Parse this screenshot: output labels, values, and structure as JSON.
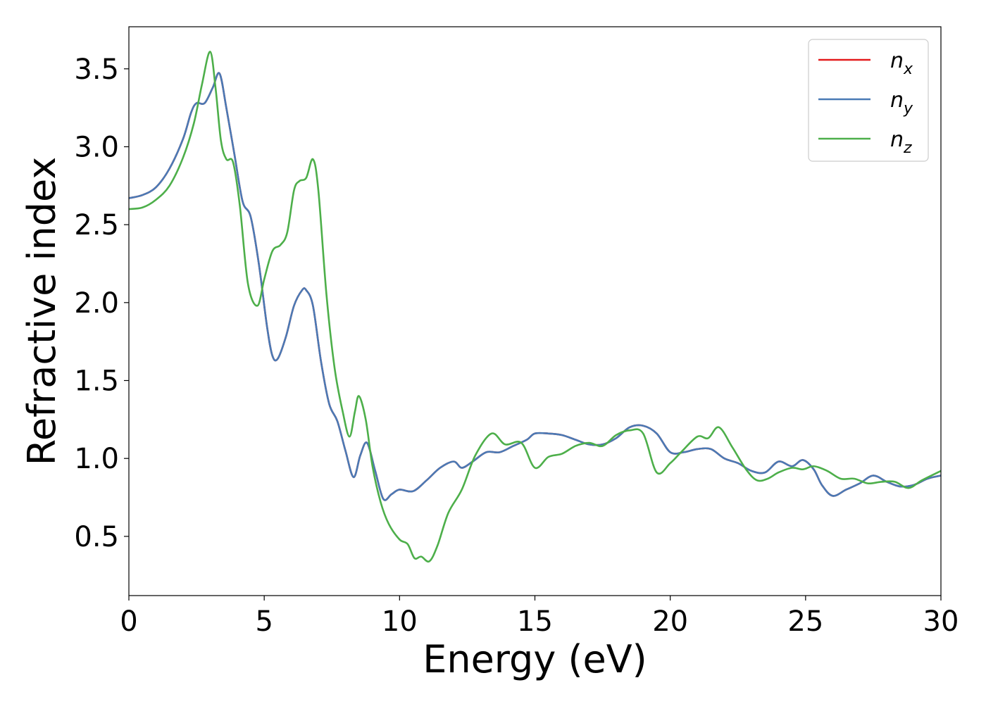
{
  "chart_data": {
    "type": "line",
    "xlabel": "Energy (eV)",
    "ylabel": "Refractive index",
    "xlim": [
      0,
      30
    ],
    "ylim": [
      0.12,
      3.77
    ],
    "xticks": [
      0,
      5,
      10,
      15,
      20,
      25,
      30
    ],
    "xtick_labels": [
      "0",
      "5",
      "10",
      "15",
      "20",
      "25",
      "30"
    ],
    "yticks": [
      0.5,
      1.0,
      1.5,
      2.0,
      2.5,
      3.0,
      3.5
    ],
    "ytick_labels": [
      "0.5",
      "1.0",
      "1.5",
      "2.0",
      "2.5",
      "3.0",
      "3.5"
    ],
    "grid": false,
    "legend_position": "top-right",
    "series": [
      {
        "name": "n_x",
        "label_base": "n",
        "label_sub": "x",
        "color": "#e41a1c",
        "x": [
          0,
          0.5,
          1,
          1.5,
          2,
          2.3,
          2.5,
          2.8,
          3.1,
          3.35,
          3.6,
          3.9,
          4.2,
          4.5,
          4.8,
          5.1,
          5.3,
          5.5,
          5.8,
          6.1,
          6.4,
          6.55,
          6.8,
          7.1,
          7.4,
          7.7,
          8.0,
          8.3,
          8.55,
          8.8,
          9.1,
          9.4,
          9.7,
          10.0,
          10.5,
          11.0,
          11.5,
          12.0,
          12.3,
          12.7,
          13.2,
          13.7,
          14.2,
          14.7,
          15.0,
          15.5,
          16.0,
          16.5,
          17.0,
          17.5,
          18.0,
          18.5,
          19.0,
          19.5,
          20.0,
          20.5,
          21.0,
          21.5,
          22.0,
          22.5,
          23.0,
          23.5,
          24.0,
          24.5,
          24.9,
          25.3,
          25.6,
          26.0,
          26.5,
          27.0,
          27.5,
          28.0,
          28.5,
          29.0,
          29.5,
          30.0
        ],
        "y": [
          2.67,
          2.69,
          2.74,
          2.86,
          3.05,
          3.22,
          3.28,
          3.28,
          3.38,
          3.47,
          3.25,
          2.95,
          2.65,
          2.55,
          2.25,
          1.85,
          1.66,
          1.64,
          1.78,
          1.98,
          2.08,
          2.08,
          1.98,
          1.62,
          1.35,
          1.24,
          1.05,
          0.88,
          1.02,
          1.1,
          0.92,
          0.74,
          0.77,
          0.8,
          0.79,
          0.86,
          0.94,
          0.98,
          0.94,
          0.98,
          1.04,
          1.04,
          1.08,
          1.12,
          1.16,
          1.16,
          1.15,
          1.12,
          1.09,
          1.09,
          1.13,
          1.2,
          1.21,
          1.16,
          1.04,
          1.04,
          1.06,
          1.06,
          1.0,
          0.97,
          0.92,
          0.91,
          0.98,
          0.95,
          0.99,
          0.93,
          0.83,
          0.76,
          0.8,
          0.84,
          0.89,
          0.85,
          0.82,
          0.83,
          0.87,
          0.89
        ]
      },
      {
        "name": "n_y",
        "label_base": "n",
        "label_sub": "y",
        "color": "#4a7ab5",
        "x": [
          0,
          0.5,
          1,
          1.5,
          2,
          2.3,
          2.5,
          2.8,
          3.1,
          3.35,
          3.6,
          3.9,
          4.2,
          4.5,
          4.8,
          5.1,
          5.3,
          5.5,
          5.8,
          6.1,
          6.4,
          6.55,
          6.8,
          7.1,
          7.4,
          7.7,
          8.0,
          8.3,
          8.55,
          8.8,
          9.1,
          9.4,
          9.7,
          10.0,
          10.5,
          11.0,
          11.5,
          12.0,
          12.3,
          12.7,
          13.2,
          13.7,
          14.2,
          14.7,
          15.0,
          15.5,
          16.0,
          16.5,
          17.0,
          17.5,
          18.0,
          18.5,
          19.0,
          19.5,
          20.0,
          20.5,
          21.0,
          21.5,
          22.0,
          22.5,
          23.0,
          23.5,
          24.0,
          24.5,
          24.9,
          25.3,
          25.6,
          26.0,
          26.5,
          27.0,
          27.5,
          28.0,
          28.5,
          29.0,
          29.5,
          30.0
        ],
        "y": [
          2.67,
          2.69,
          2.74,
          2.86,
          3.05,
          3.22,
          3.28,
          3.28,
          3.38,
          3.47,
          3.25,
          2.95,
          2.65,
          2.55,
          2.25,
          1.85,
          1.66,
          1.64,
          1.78,
          1.98,
          2.08,
          2.08,
          1.98,
          1.62,
          1.35,
          1.24,
          1.05,
          0.88,
          1.02,
          1.1,
          0.92,
          0.74,
          0.77,
          0.8,
          0.79,
          0.86,
          0.94,
          0.98,
          0.94,
          0.98,
          1.04,
          1.04,
          1.08,
          1.12,
          1.16,
          1.16,
          1.15,
          1.12,
          1.09,
          1.09,
          1.13,
          1.2,
          1.21,
          1.16,
          1.04,
          1.04,
          1.06,
          1.06,
          1.0,
          0.97,
          0.92,
          0.91,
          0.98,
          0.95,
          0.99,
          0.93,
          0.83,
          0.76,
          0.8,
          0.84,
          0.89,
          0.85,
          0.82,
          0.83,
          0.87,
          0.89
        ]
      },
      {
        "name": "n_z",
        "label_base": "n",
        "label_sub": "z",
        "color": "#4daf4a",
        "x": [
          0,
          0.5,
          1,
          1.5,
          2,
          2.4,
          2.7,
          3.0,
          3.2,
          3.4,
          3.6,
          3.85,
          4.1,
          4.4,
          4.75,
          5.0,
          5.3,
          5.6,
          5.85,
          6.1,
          6.3,
          6.55,
          6.8,
          7.0,
          7.3,
          7.6,
          7.9,
          8.15,
          8.35,
          8.5,
          8.75,
          9.0,
          9.3,
          9.6,
          10.0,
          10.3,
          10.55,
          10.8,
          11.1,
          11.4,
          11.8,
          12.3,
          12.8,
          13.4,
          13.9,
          14.5,
          15.0,
          15.5,
          16.0,
          16.5,
          17.0,
          17.5,
          18.0,
          18.5,
          19.0,
          19.5,
          20.0,
          20.4,
          21.0,
          21.4,
          21.8,
          22.3,
          22.8,
          23.2,
          23.6,
          24.0,
          24.5,
          24.9,
          25.3,
          25.8,
          26.3,
          26.8,
          27.3,
          27.8,
          28.3,
          28.8,
          29.3,
          30.0
        ],
        "y": [
          2.6,
          2.61,
          2.66,
          2.75,
          2.93,
          3.15,
          3.4,
          3.61,
          3.38,
          3.04,
          2.92,
          2.9,
          2.62,
          2.12,
          1.98,
          2.15,
          2.33,
          2.37,
          2.45,
          2.72,
          2.78,
          2.8,
          2.92,
          2.72,
          2.05,
          1.58,
          1.3,
          1.14,
          1.3,
          1.4,
          1.25,
          0.95,
          0.72,
          0.58,
          0.48,
          0.45,
          0.36,
          0.37,
          0.34,
          0.44,
          0.65,
          0.8,
          1.02,
          1.16,
          1.09,
          1.1,
          0.94,
          1.01,
          1.03,
          1.08,
          1.1,
          1.08,
          1.15,
          1.18,
          1.16,
          0.91,
          0.97,
          1.04,
          1.14,
          1.13,
          1.2,
          1.07,
          0.93,
          0.86,
          0.87,
          0.91,
          0.94,
          0.93,
          0.95,
          0.92,
          0.87,
          0.87,
          0.84,
          0.85,
          0.85,
          0.81,
          0.86,
          0.92
        ]
      }
    ]
  }
}
